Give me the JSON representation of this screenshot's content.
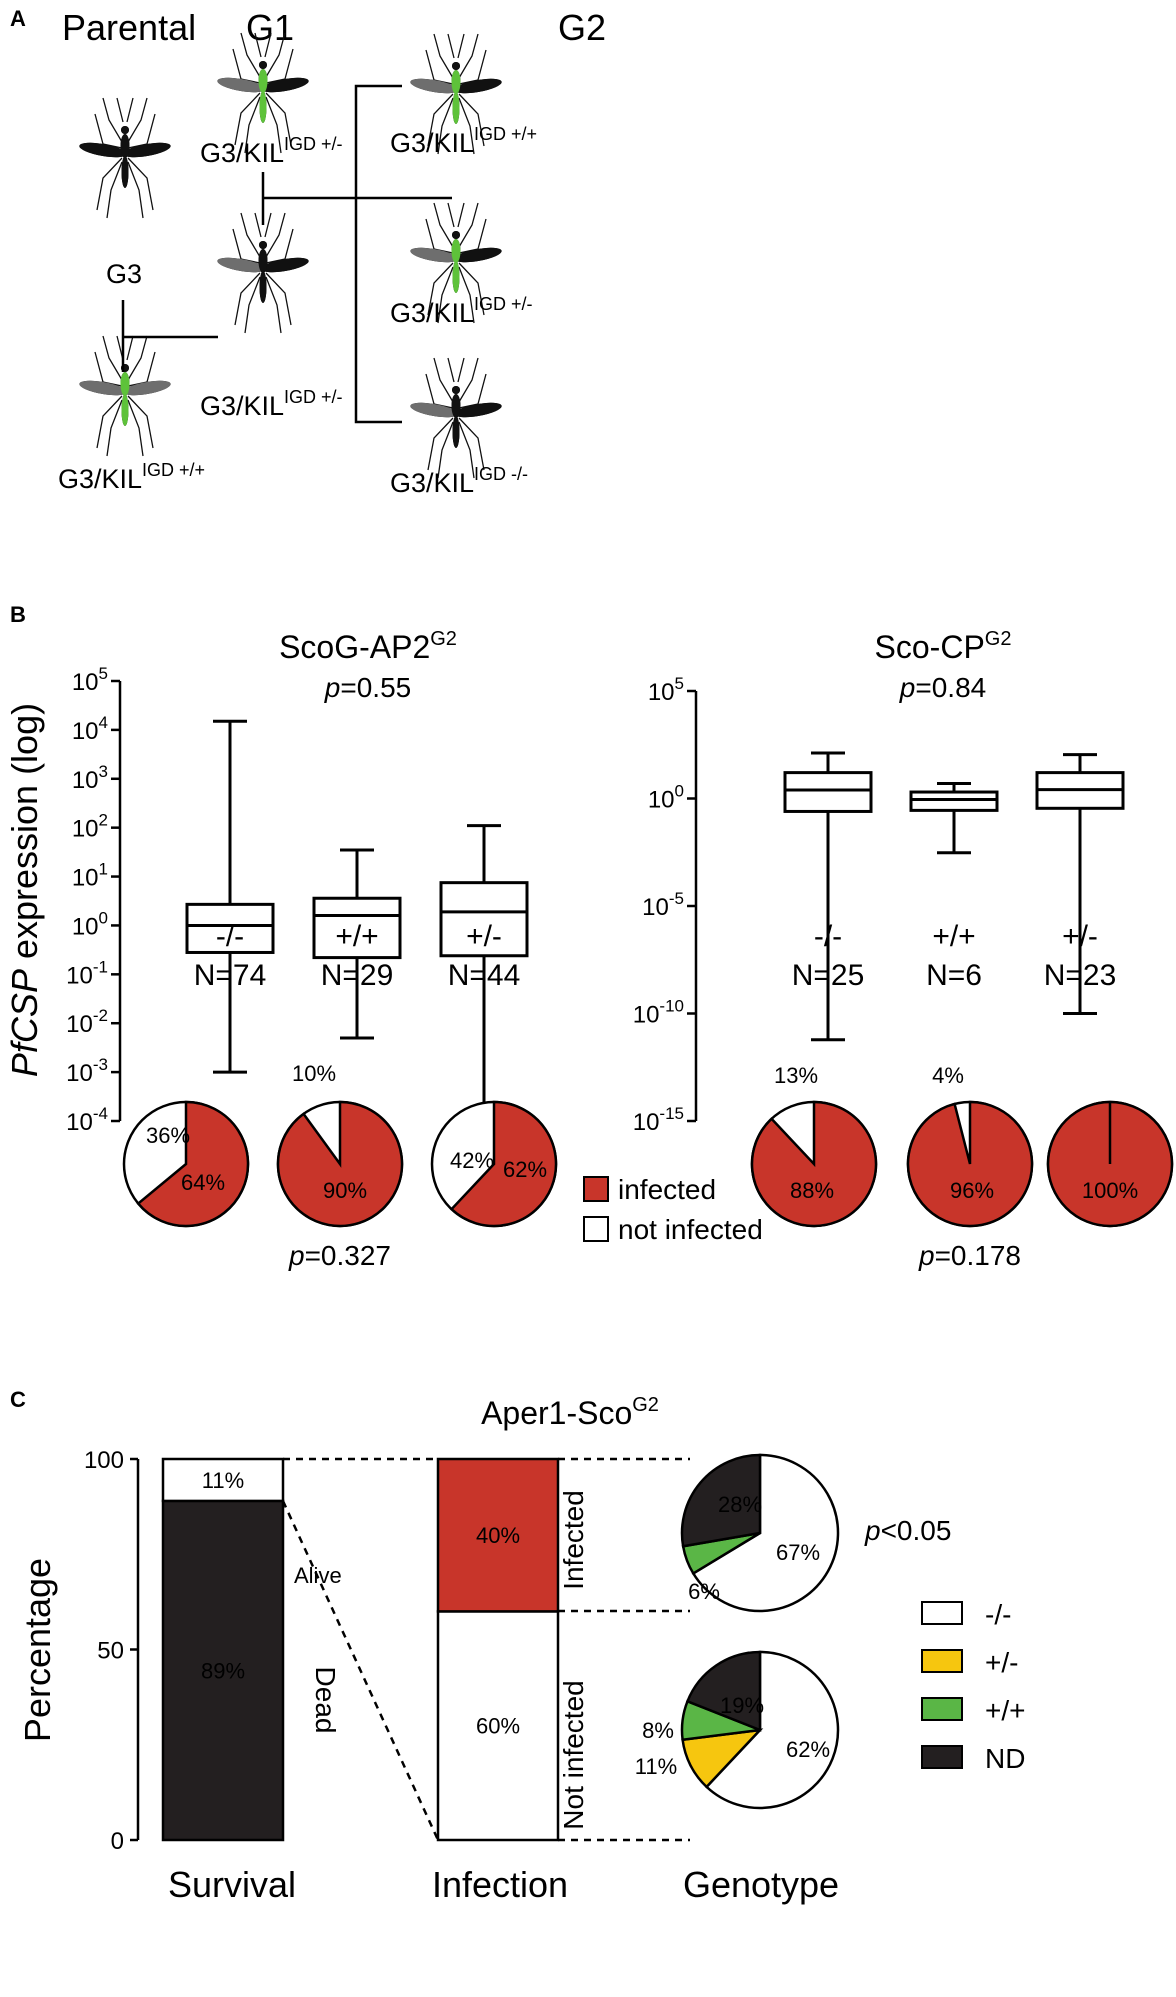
{
  "panels": {
    "a": "A",
    "b": "B",
    "c": "C"
  },
  "panel_a": {
    "headers": {
      "parental": "Parental",
      "g1": "G1",
      "g2": "G2"
    },
    "genotype_base": "G3/KIL",
    "genotype_sup_prefix": "IGD ",
    "g3_label": "G3",
    "parental_cross": {
      "sup": "+/+"
    },
    "g1_top": {
      "sup": "+/-"
    },
    "g1_cross": {
      "sup": "+/-"
    },
    "g2_top": {
      "sup": "+/+"
    },
    "g2_mid": {
      "sup": "+/-"
    },
    "g2_bottom": {
      "sup": "-/-"
    },
    "colors": {
      "green": "#5ec23a",
      "black": "#111111",
      "gray": "#6e6e6e"
    }
  },
  "panel_b": {
    "ylabel_italic": "PfCSP",
    "ylabel_rest": " expression (log)",
    "left": {
      "title_main": "ScoG-AP2",
      "title_sup": "G2",
      "p_prefix": "p",
      "p_value": "=0.55",
      "ticks": [
        {
          "base": "10",
          "exp": "5"
        },
        {
          "base": "10",
          "exp": "4"
        },
        {
          "base": "10",
          "exp": "3"
        },
        {
          "base": "10",
          "exp": "2"
        },
        {
          "base": "10",
          "exp": "1"
        },
        {
          "base": "10",
          "exp": "0"
        },
        {
          "base": "10",
          "exp": "-1"
        },
        {
          "base": "10",
          "exp": "-2"
        },
        {
          "base": "10",
          "exp": "-3"
        },
        {
          "base": "10",
          "exp": "-4"
        }
      ],
      "groups": [
        {
          "label": "-/-",
          "n": "N=74"
        },
        {
          "label": "+/+",
          "n": "N=29"
        },
        {
          "label": "+/-",
          "n": "N=44"
        }
      ],
      "pie_p_prefix": "p",
      "pie_p_value": "=0.327"
    },
    "right": {
      "title_main": "Sco-CP",
      "title_sup": "G2",
      "p_prefix": "p",
      "p_value": "=0.84",
      "ticks": [
        {
          "base": "10",
          "exp": "5"
        },
        {
          "base": "10",
          "exp": "0"
        },
        {
          "base": "10",
          "exp": "-5"
        },
        {
          "base": "10",
          "exp": "-10"
        },
        {
          "base": "10",
          "exp": "-15"
        }
      ],
      "groups": [
        {
          "label": "-/-",
          "n": "N=25"
        },
        {
          "label": "+/+",
          "n": "N=6"
        },
        {
          "label": "+/-",
          "n": "N=23"
        }
      ],
      "pie_p_prefix": "p",
      "pie_p_value": "=0.178"
    },
    "legend": {
      "infected": "infected",
      "not_infected": "not infected"
    },
    "colors": {
      "infected": "#c8352a",
      "not_infected": "#ffffff"
    }
  },
  "panel_c": {
    "title_main": "Aper1-Sco",
    "title_sup": "G2",
    "ylabel": "Percentage",
    "yticks": [
      "100",
      "50",
      "0"
    ],
    "xlabels": {
      "survival": "Survival",
      "infection": "Infection",
      "genotype": "Genotype"
    },
    "survival": {
      "alive_label": "Alive",
      "dead_label": "Dead"
    },
    "infection": {
      "infected_label": "Infected",
      "not_infected_label": "Not infected"
    },
    "p_prefix": "p",
    "p_value": "<0.05",
    "legend": [
      {
        "label": "-/-",
        "color": "#ffffff"
      },
      {
        "label": "+/-",
        "color": "#f6c60f"
      },
      {
        "label": "+/+",
        "color": "#5ab646"
      },
      {
        "label": "ND",
        "color": "#231f20"
      }
    ]
  },
  "chart_data": [
    {
      "type": "box",
      "title": "ScoG-AP2G2",
      "subtitle": "p=0.55",
      "ylabel": "PfCSP expression (log)",
      "yscale": "log",
      "ylim": [
        0.0001,
        100000
      ],
      "categories": [
        "-/-",
        "+/+",
        "+/-"
      ],
      "n": [
        74,
        29,
        44
      ],
      "boxes": [
        {
          "min": 0.001,
          "q1": 0.28,
          "median": 1.0,
          "q3": 2.7,
          "max": 15000
        },
        {
          "min": 0.005,
          "q1": 0.22,
          "median": 1.6,
          "q3": 3.6,
          "max": 35
        },
        {
          "min": 0.00015,
          "q1": 0.24,
          "median": 1.9,
          "q3": 7.5,
          "max": 110
        }
      ]
    },
    {
      "type": "box",
      "title": "Sco-CPG2",
      "subtitle": "p=0.84",
      "ylabel": "PfCSP expression (log)",
      "yscale": "log",
      "ylim": [
        1e-15,
        100000
      ],
      "categories": [
        "-/-",
        "+/+",
        "+/-"
      ],
      "n": [
        25,
        6,
        23
      ],
      "boxes": [
        {
          "min": 6e-12,
          "q1": 0.25,
          "median": 2.5,
          "q3": 16,
          "max": 130
        },
        {
          "min": 0.003,
          "q1": 0.28,
          "median": 0.9,
          "q3": 2.0,
          "max": 5
        },
        {
          "min": 1e-10,
          "q1": 0.35,
          "median": 2.6,
          "q3": 16,
          "max": 110
        }
      ]
    },
    {
      "type": "pie",
      "title": "ScoG-AP2G2 infection",
      "subtitle": "p=0.327",
      "categories": [
        "-/-",
        "+/+",
        "+/-"
      ],
      "series": [
        {
          "name": "infected",
          "values": [
            64,
            90,
            62
          ]
        },
        {
          "name": "not infected",
          "values": [
            36,
            10,
            42
          ]
        }
      ]
    },
    {
      "type": "pie",
      "title": "Sco-CPG2 infection",
      "subtitle": "p=0.178",
      "categories": [
        "-/-",
        "+/+",
        "+/-"
      ],
      "series": [
        {
          "name": "infected",
          "values": [
            88,
            96,
            100
          ]
        },
        {
          "name": "not infected",
          "values": [
            13,
            4,
            0
          ]
        }
      ]
    },
    {
      "type": "bar",
      "title": "Aper1-ScoG2",
      "ylabel": "Percentage",
      "ylim": [
        0,
        100
      ],
      "categories": [
        "Survival",
        "Infection"
      ],
      "stacks": [
        {
          "category": "Survival",
          "segments": [
            {
              "name": "Dead",
              "value": 89,
              "color": "#231f20"
            },
            {
              "name": "Alive",
              "value": 11,
              "color": "#ffffff"
            }
          ]
        },
        {
          "category": "Infection",
          "segments": [
            {
              "name": "Not infected",
              "value": 60,
              "color": "#ffffff"
            },
            {
              "name": "Infected",
              "value": 40,
              "color": "#c8352a"
            }
          ]
        }
      ]
    },
    {
      "type": "pie",
      "title": "Genotype",
      "subtitle": "p<0.05",
      "pies": [
        {
          "group": "Infected",
          "slices": [
            {
              "name": "-/-",
              "value": 67
            },
            {
              "name": "+/-",
              "value": 0
            },
            {
              "name": "+/+",
              "value": 6
            },
            {
              "name": "ND",
              "value": 28
            }
          ]
        },
        {
          "group": "Not infected",
          "slices": [
            {
              "name": "-/-",
              "value": 62
            },
            {
              "name": "+/-",
              "value": 11
            },
            {
              "name": "+/+",
              "value": 8
            },
            {
              "name": "ND",
              "value": 19
            }
          ]
        }
      ]
    }
  ]
}
